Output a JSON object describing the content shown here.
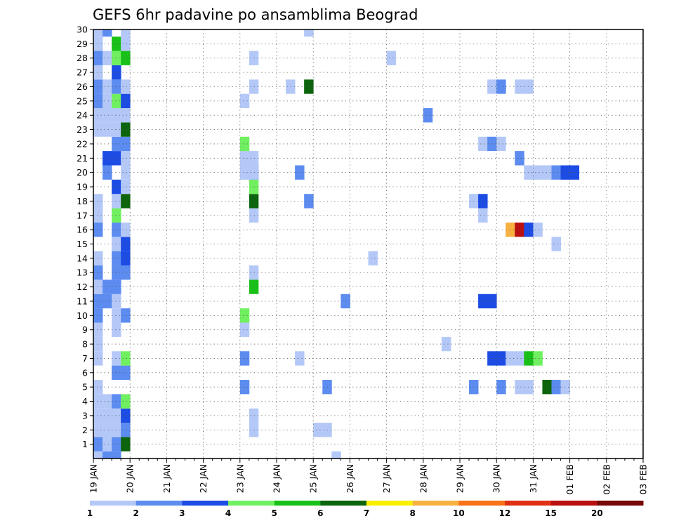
{
  "chart_data": {
    "type": "heatmap",
    "title": "GEFS 6hr padavine po ansamblima Beograd",
    "x_tick_labels": [
      "19 JAN",
      "20 JAN",
      "21 JAN",
      "22 JAN",
      "23 JAN",
      "24 JAN",
      "25 JAN",
      "26 JAN",
      "27 JAN",
      "28 JAN",
      "29 JAN",
      "30 JAN",
      "31 JAN",
      "01 FEB",
      "02 FEB",
      "03 FEB"
    ],
    "y_tick_labels": [
      "1",
      "2",
      "3",
      "4",
      "5",
      "6",
      "7",
      "8",
      "9",
      "10",
      "11",
      "12",
      "13",
      "14",
      "15",
      "16",
      "17",
      "18",
      "19",
      "20",
      "21",
      "22",
      "23",
      "24",
      "25",
      "26",
      "27",
      "28",
      "29",
      "30"
    ],
    "x_unit": "6-hour step from 19 JAN 00Z",
    "xlim": [
      0,
      60
    ],
    "ylim": [
      0,
      30
    ],
    "grid": true,
    "legend": {
      "placement": "bottom",
      "labels": [
        "1",
        "2",
        "3",
        "4",
        "5",
        "6",
        "7",
        "8",
        "10",
        "12",
        "15",
        "20"
      ],
      "colors": [
        "#b4c8f8",
        "#5c8cf0",
        "#1c4ce4",
        "#70f060",
        "#18c018",
        "#0c640c",
        "#f8f000",
        "#f8b040",
        "#f87018",
        "#e03014",
        "#b81010",
        "#760808"
      ]
    },
    "cells": [
      {
        "step": 0,
        "member": 0,
        "level": 1
      },
      {
        "step": 1,
        "member": 0,
        "level": 2
      },
      {
        "step": 2,
        "member": 0,
        "level": 2
      },
      {
        "step": 0,
        "member": 1,
        "level": 2
      },
      {
        "step": 1,
        "member": 1,
        "level": 1
      },
      {
        "step": 2,
        "member": 1,
        "level": 2
      },
      {
        "step": 3,
        "member": 1,
        "level": 6
      },
      {
        "step": 0,
        "member": 2,
        "level": 1
      },
      {
        "step": 1,
        "member": 2,
        "level": 1
      },
      {
        "step": 2,
        "member": 2,
        "level": 1
      },
      {
        "step": 3,
        "member": 2,
        "level": 2
      },
      {
        "step": 0,
        "member": 3,
        "level": 1
      },
      {
        "step": 1,
        "member": 3,
        "level": 1
      },
      {
        "step": 2,
        "member": 3,
        "level": 1
      },
      {
        "step": 3,
        "member": 3,
        "level": 3
      },
      {
        "step": 0,
        "member": 4,
        "level": 1
      },
      {
        "step": 1,
        "member": 4,
        "level": 1
      },
      {
        "step": 2,
        "member": 4,
        "level": 2
      },
      {
        "step": 3,
        "member": 4,
        "level": 4
      },
      {
        "step": 0,
        "member": 5,
        "level": 1
      },
      {
        "step": 2,
        "member": 6,
        "level": 2
      },
      {
        "step": 3,
        "member": 6,
        "level": 2
      },
      {
        "step": 0,
        "member": 7,
        "level": 1
      },
      {
        "step": 2,
        "member": 7,
        "level": 1
      },
      {
        "step": 3,
        "member": 7,
        "level": 4
      },
      {
        "step": 0,
        "member": 8,
        "level": 1
      },
      {
        "step": 0,
        "member": 9,
        "level": 1
      },
      {
        "step": 2,
        "member": 9,
        "level": 1
      },
      {
        "step": 0,
        "member": 10,
        "level": 2
      },
      {
        "step": 2,
        "member": 10,
        "level": 1
      },
      {
        "step": 3,
        "member": 10,
        "level": 2
      },
      {
        "step": 0,
        "member": 11,
        "level": 2
      },
      {
        "step": 1,
        "member": 11,
        "level": 2
      },
      {
        "step": 2,
        "member": 11,
        "level": 1
      },
      {
        "step": 0,
        "member": 12,
        "level": 1
      },
      {
        "step": 1,
        "member": 12,
        "level": 2
      },
      {
        "step": 2,
        "member": 12,
        "level": 2
      },
      {
        "step": 0,
        "member": 13,
        "level": 2
      },
      {
        "step": 2,
        "member": 13,
        "level": 2
      },
      {
        "step": 3,
        "member": 13,
        "level": 2
      },
      {
        "step": 0,
        "member": 14,
        "level": 1
      },
      {
        "step": 2,
        "member": 14,
        "level": 2
      },
      {
        "step": 3,
        "member": 14,
        "level": 3
      },
      {
        "step": 2,
        "member": 15,
        "level": 1
      },
      {
        "step": 3,
        "member": 15,
        "level": 3
      },
      {
        "step": 0,
        "member": 16,
        "level": 2
      },
      {
        "step": 2,
        "member": 16,
        "level": 2
      },
      {
        "step": 3,
        "member": 16,
        "level": 1
      },
      {
        "step": 0,
        "member": 17,
        "level": 1
      },
      {
        "step": 2,
        "member": 17,
        "level": 4
      },
      {
        "step": 0,
        "member": 18,
        "level": 1
      },
      {
        "step": 2,
        "member": 18,
        "level": 1
      },
      {
        "step": 3,
        "member": 18,
        "level": 6
      },
      {
        "step": 2,
        "member": 19,
        "level": 3
      },
      {
        "step": 3,
        "member": 19,
        "level": 1
      },
      {
        "step": 1,
        "member": 20,
        "level": 2
      },
      {
        "step": 3,
        "member": 20,
        "level": 1
      },
      {
        "step": 1,
        "member": 21,
        "level": 3
      },
      {
        "step": 2,
        "member": 21,
        "level": 3
      },
      {
        "step": 3,
        "member": 21,
        "level": 1
      },
      {
        "step": 2,
        "member": 22,
        "level": 2
      },
      {
        "step": 3,
        "member": 22,
        "level": 2
      },
      {
        "step": 0,
        "member": 23,
        "level": 1
      },
      {
        "step": 1,
        "member": 23,
        "level": 1
      },
      {
        "step": 2,
        "member": 23,
        "level": 1
      },
      {
        "step": 3,
        "member": 23,
        "level": 6
      },
      {
        "step": 0,
        "member": 24,
        "level": 1
      },
      {
        "step": 1,
        "member": 24,
        "level": 1
      },
      {
        "step": 2,
        "member": 24,
        "level": 1
      },
      {
        "step": 3,
        "member": 24,
        "level": 1
      },
      {
        "step": 0,
        "member": 25,
        "level": 2
      },
      {
        "step": 1,
        "member": 25,
        "level": 1
      },
      {
        "step": 2,
        "member": 25,
        "level": 4
      },
      {
        "step": 3,
        "member": 25,
        "level": 3
      },
      {
        "step": 0,
        "member": 26,
        "level": 2
      },
      {
        "step": 1,
        "member": 26,
        "level": 1
      },
      {
        "step": 2,
        "member": 26,
        "level": 2
      },
      {
        "step": 3,
        "member": 26,
        "level": 1
      },
      {
        "step": 0,
        "member": 27,
        "level": 1
      },
      {
        "step": 2,
        "member": 27,
        "level": 3
      },
      {
        "step": 0,
        "member": 28,
        "level": 2
      },
      {
        "step": 1,
        "member": 28,
        "level": 1
      },
      {
        "step": 2,
        "member": 28,
        "level": 4
      },
      {
        "step": 3,
        "member": 28,
        "level": 5
      },
      {
        "step": 0,
        "member": 29,
        "level": 1
      },
      {
        "step": 2,
        "member": 29,
        "level": 5
      },
      {
        "step": 3,
        "member": 29,
        "level": 1
      },
      {
        "step": 0,
        "member": 30,
        "level": 1
      },
      {
        "step": 1,
        "member": 30,
        "level": 2
      },
      {
        "step": 3,
        "member": 30,
        "level": 1
      },
      {
        "step": 17,
        "member": 3,
        "level": 1
      },
      {
        "step": 17,
        "member": 2,
        "level": 1
      },
      {
        "step": 16,
        "member": 5,
        "level": 2
      },
      {
        "step": 16,
        "member": 7,
        "level": 2
      },
      {
        "step": 16,
        "member": 10,
        "level": 4
      },
      {
        "step": 17,
        "member": 13,
        "level": 1
      },
      {
        "step": 17,
        "member": 17,
        "level": 1
      },
      {
        "step": 17,
        "member": 18,
        "level": 6
      },
      {
        "step": 17,
        "member": 19,
        "level": 4
      },
      {
        "step": 17,
        "member": 20,
        "level": 3
      },
      {
        "step": 16,
        "member": 20,
        "level": 1
      },
      {
        "step": 17,
        "member": 20,
        "level": 1
      },
      {
        "step": 16,
        "member": 21,
        "level": 1
      },
      {
        "step": 17,
        "member": 21,
        "level": 1
      },
      {
        "step": 16,
        "member": 22,
        "level": 4
      },
      {
        "step": 16,
        "member": 25,
        "level": 1
      },
      {
        "step": 17,
        "member": 26,
        "level": 1
      },
      {
        "step": 17,
        "member": 28,
        "level": 1
      },
      {
        "step": 16,
        "member": 9,
        "level": 1
      },
      {
        "step": 17,
        "member": 12,
        "level": 5
      },
      {
        "step": 22,
        "member": 7,
        "level": 1
      },
      {
        "step": 22,
        "member": 20,
        "level": 2
      },
      {
        "step": 21,
        "member": 26,
        "level": 1
      },
      {
        "step": 23,
        "member": 26,
        "level": 6
      },
      {
        "step": 23,
        "member": 30,
        "level": 1
      },
      {
        "step": 23,
        "member": 18,
        "level": 2
      },
      {
        "step": 24,
        "member": 2,
        "level": 1
      },
      {
        "step": 25,
        "member": 2,
        "level": 1
      },
      {
        "step": 25,
        "member": 5,
        "level": 2
      },
      {
        "step": 27,
        "member": 11,
        "level": 2
      },
      {
        "step": 26,
        "member": 0,
        "level": 1
      },
      {
        "step": 32,
        "member": 28,
        "level": 1
      },
      {
        "step": 30,
        "member": 14,
        "level": 1
      },
      {
        "step": 36,
        "member": 24,
        "level": 2
      },
      {
        "step": 38,
        "member": 8,
        "level": 1
      },
      {
        "step": 41,
        "member": 5,
        "level": 2
      },
      {
        "step": 41,
        "member": 18,
        "level": 1
      },
      {
        "step": 42,
        "member": 18,
        "level": 3
      },
      {
        "step": 42,
        "member": 17,
        "level": 1
      },
      {
        "step": 42,
        "member": 11,
        "level": 3
      },
      {
        "step": 43,
        "member": 11,
        "level": 3
      },
      {
        "step": 42,
        "member": 22,
        "level": 1
      },
      {
        "step": 43,
        "member": 22,
        "level": 2
      },
      {
        "step": 44,
        "member": 22,
        "level": 1
      },
      {
        "step": 43,
        "member": 7,
        "level": 3
      },
      {
        "step": 44,
        "member": 7,
        "level": 3
      },
      {
        "step": 45,
        "member": 7,
        "level": 1
      },
      {
        "step": 46,
        "member": 7,
        "level": 1
      },
      {
        "step": 47,
        "member": 7,
        "level": 5
      },
      {
        "step": 48,
        "member": 7,
        "level": 4
      },
      {
        "step": 44,
        "member": 5,
        "level": 2
      },
      {
        "step": 46,
        "member": 5,
        "level": 1
      },
      {
        "step": 47,
        "member": 5,
        "level": 1
      },
      {
        "step": 49,
        "member": 5,
        "level": 6
      },
      {
        "step": 50,
        "member": 5,
        "level": 2
      },
      {
        "step": 51,
        "member": 5,
        "level": 1
      },
      {
        "step": 43,
        "member": 26,
        "level": 1
      },
      {
        "step": 44,
        "member": 26,
        "level": 2
      },
      {
        "step": 46,
        "member": 26,
        "level": 1
      },
      {
        "step": 47,
        "member": 26,
        "level": 1
      },
      {
        "step": 45,
        "member": 16,
        "level": 8
      },
      {
        "step": 46,
        "member": 16,
        "level": 11
      },
      {
        "step": 47,
        "member": 16,
        "level": 3
      },
      {
        "step": 48,
        "member": 16,
        "level": 1
      },
      {
        "step": 46,
        "member": 21,
        "level": 2
      },
      {
        "step": 47,
        "member": 20,
        "level": 1
      },
      {
        "step": 48,
        "member": 20,
        "level": 1
      },
      {
        "step": 49,
        "member": 20,
        "level": 1
      },
      {
        "step": 50,
        "member": 20,
        "level": 2
      },
      {
        "step": 51,
        "member": 20,
        "level": 3
      },
      {
        "step": 52,
        "member": 20,
        "level": 3
      },
      {
        "step": 50,
        "member": 15,
        "level": 1
      }
    ]
  }
}
